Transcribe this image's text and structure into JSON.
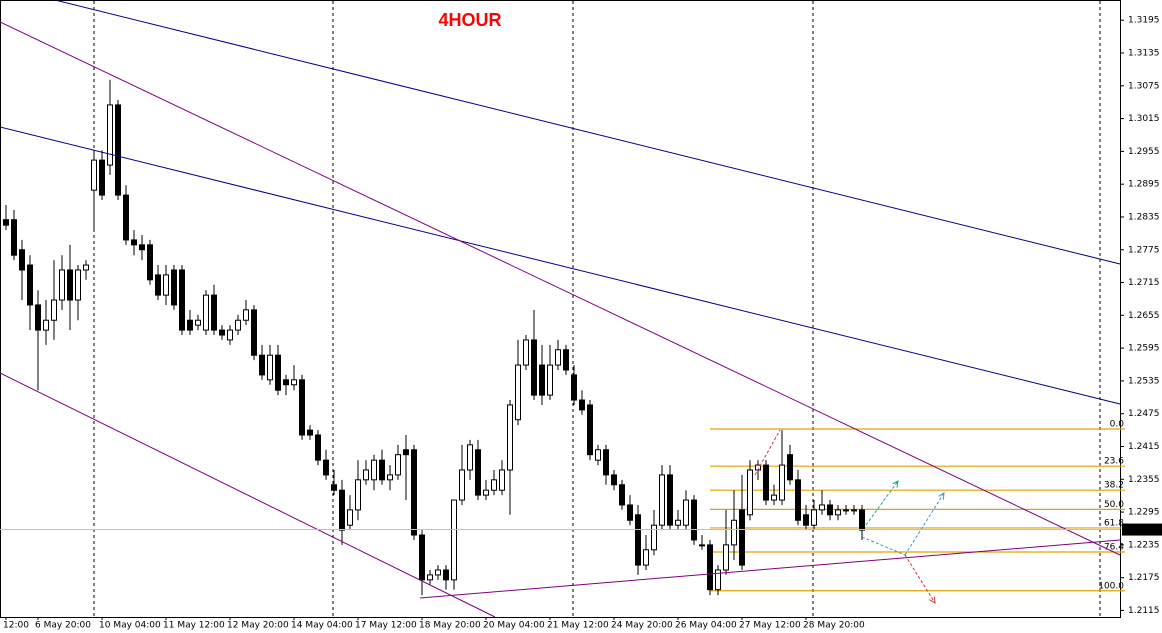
{
  "chart_data": {
    "type": "candlestick",
    "title": "4HOUR",
    "categories": [
      "12:00",
      null,
      null,
      null,
      "6 May 20:00",
      null,
      null,
      null,
      null,
      null,
      null,
      null,
      "10 May 04:00",
      null,
      null,
      null,
      null,
      null,
      null,
      null,
      "11 May 12:00",
      null,
      null,
      null,
      null,
      null,
      null,
      null,
      "12 May 20:00",
      null,
      null,
      null,
      null,
      null,
      null,
      null,
      "14 May 04:00",
      null,
      null,
      null,
      null,
      null,
      null,
      null,
      "17 May 12:00",
      null,
      null,
      null,
      null,
      null,
      null,
      null,
      "18 May 20:00",
      null,
      null,
      null,
      null,
      null,
      null,
      null,
      "20 May 04:00",
      null,
      null,
      null,
      null,
      null,
      null,
      null,
      "21 May 12:00",
      null,
      null,
      null,
      null,
      null,
      null,
      null,
      "24 May 20:00",
      null,
      null,
      null,
      null,
      null,
      null,
      null,
      "26 May 04:00",
      null,
      null,
      null,
      null,
      null,
      null,
      null,
      "27 May 12:00",
      null,
      null,
      null,
      null,
      null,
      null,
      null,
      "28 May 20:00",
      null,
      null,
      null,
      null,
      null,
      null,
      null
    ],
    "open": [
      1.283,
      1.283,
      1.2775,
      1.2747,
      1.2674,
      1.2628,
      1.2646,
      1.2683,
      1.2738,
      1.2683,
      1.2738,
      1.2884,
      1.2939,
      1.293,
      1.304,
      1.2875,
      1.2793,
      1.2784,
      1.2784,
      1.2729,
      1.2692,
      1.2738,
      1.2738,
      1.2646,
      1.2637,
      1.2628,
      1.2692,
      1.2628,
      1.261,
      1.2628,
      1.2646,
      1.2665,
      1.2582,
      1.2537,
      1.2582,
      1.2537,
      1.2528,
      1.2537,
      1.2445,
      1.2436,
      1.239,
      1.2345,
      1.2335,
      1.2271,
      1.2299,
      1.2354,
      1.2354,
      1.239,
      1.2354,
      1.2363,
      1.2409,
      1.2409,
      1.2253,
      1.2171,
      1.218,
      1.2189,
      1.2171,
      1.2317,
      1.2372,
      1.2409,
      1.2326,
      1.2335,
      1.2335,
      1.2372,
      1.2464,
      1.2564,
      1.261,
      1.2564,
      1.2509,
      1.2564,
      1.2592,
      1.2546,
      1.25,
      1.2491,
      1.239,
      1.2409,
      1.2363,
      1.2345,
      1.2308,
      1.229,
      1.2198,
      1.2226,
      1.2271,
      1.2363,
      1.2271,
      1.2271,
      1.2317,
      1.2235,
      1.2235,
      1.2153,
      1.2189,
      1.2235,
      1.2299,
      1.229,
      1.2372,
      1.2381,
      1.2317,
      1.2317,
      1.24,
      1.2354,
      1.229,
      1.2271,
      1.2299,
      1.2308,
      1.229,
      1.2299,
      1.2299,
      1.2299
    ],
    "high": [
      1.2857,
      1.2848,
      1.2793,
      1.2765,
      1.2701,
      1.2683,
      1.2756,
      1.2765,
      1.2784,
      1.2747,
      1.2756,
      1.2957,
      1.2957,
      1.3086,
      1.3049,
      1.2893,
      1.2811,
      1.2802,
      1.2793,
      1.2747,
      1.2747,
      1.2747,
      1.2747,
      1.2665,
      1.2656,
      1.2701,
      1.2711,
      1.2637,
      1.2637,
      1.2656,
      1.2683,
      1.2674,
      1.2601,
      1.2601,
      1.2601,
      1.2546,
      1.2564,
      1.2546,
      1.2454,
      1.2445,
      1.2409,
      1.2372,
      1.2354,
      1.2326,
      1.239,
      1.239,
      1.24,
      1.2409,
      1.2381,
      1.2418,
      1.2436,
      1.2418,
      1.2262,
      1.2189,
      1.2198,
      1.2198,
      1.2317,
      1.2418,
      1.2427,
      1.2427,
      1.2354,
      1.2372,
      1.239,
      1.25,
      1.261,
      1.2619,
      1.2665,
      1.2601,
      1.2601,
      1.261,
      1.2601,
      1.2564,
      1.2518,
      1.25,
      1.2418,
      1.2418,
      1.2372,
      1.2354,
      1.2326,
      1.2308,
      1.2253,
      1.2299,
      1.2381,
      1.2381,
      1.2299,
      1.2335,
      1.2326,
      1.2253,
      1.2244,
      1.2198,
      1.2299,
      1.2335,
      1.2363,
      1.239,
      1.239,
      1.239,
      1.2345,
      1.2445,
      1.2418,
      1.2372,
      1.2308,
      1.2317,
      1.2335,
      1.2317,
      1.2308,
      1.2308,
      1.2308,
      1.2308
    ],
    "low": [
      1.2811,
      1.2756,
      1.2683,
      1.2628,
      1.2518,
      1.2601,
      1.261,
      1.2665,
      1.2628,
      1.2646,
      1.272,
      1.2811,
      1.2866,
      1.2912,
      1.2866,
      1.2784,
      1.2765,
      1.2756,
      1.2711,
      1.2683,
      1.2674,
      1.2665,
      1.2619,
      1.2619,
      1.2628,
      1.2619,
      1.2619,
      1.261,
      1.2601,
      1.2619,
      1.2637,
      1.2573,
      1.2537,
      1.2528,
      1.2509,
      1.2509,
      1.2518,
      1.2427,
      1.2427,
      1.2381,
      1.2354,
      1.2326,
      1.2235,
      1.2262,
      1.228,
      1.2345,
      1.2335,
      1.2345,
      1.2335,
      1.2354,
      1.2317,
      1.2244,
      1.2143,
      1.2162,
      1.2171,
      1.2153,
      1.2153,
      1.2308,
      1.2354,
      1.2317,
      1.2317,
      1.2326,
      1.2326,
      1.229,
      1.2454,
      1.2555,
      1.25,
      1.2491,
      1.25,
      1.2555,
      1.2546,
      1.2491,
      1.2473,
      1.239,
      1.2381,
      1.2345,
      1.2335,
      1.2299,
      1.2271,
      1.218,
      1.2189,
      1.2216,
      1.2262,
      1.2262,
      1.2262,
      1.2262,
      1.2235,
      1.2226,
      1.2143,
      1.2143,
      1.218,
      1.2207,
      1.2189,
      1.228,
      1.2354,
      1.2308,
      1.2308,
      1.2308,
      1.2345,
      1.2271,
      1.2262,
      1.2262,
      1.229,
      1.228,
      1.228,
      1.229,
      1.229,
      1.2244
    ],
    "close": [
      1.282,
      1.2765,
      1.2738,
      1.2674,
      1.2628,
      1.2646,
      1.2683,
      1.2738,
      1.2683,
      1.2738,
      1.2747,
      1.2939,
      1.2875,
      1.304,
      1.2875,
      1.2793,
      1.2784,
      1.2775,
      1.272,
      1.2692,
      1.2729,
      1.2674,
      1.2628,
      1.2628,
      1.2646,
      1.2692,
      1.2628,
      1.2619,
      1.2628,
      1.2646,
      1.2665,
      1.2582,
      1.2546,
      1.2582,
      1.2518,
      1.2528,
      1.2537,
      1.2436,
      1.2436,
      1.239,
      1.2363,
      1.2335,
      1.2262,
      1.2299,
      1.2354,
      1.2372,
      1.239,
      1.2354,
      1.2363,
      1.24,
      1.24,
      1.2253,
      1.2171,
      1.218,
      1.2189,
      1.2171,
      1.2317,
      1.2372,
      1.2418,
      1.2326,
      1.2335,
      1.2354,
      1.2372,
      1.2491,
      1.2564,
      1.261,
      1.2509,
      1.2509,
      1.2564,
      1.2592,
      1.2555,
      1.25,
      1.2482,
      1.24,
      1.2409,
      1.2363,
      1.2345,
      1.2308,
      1.228,
      1.2198,
      1.2226,
      1.2271,
      1.2363,
      1.2271,
      1.228,
      1.2317,
      1.2244,
      1.2235,
      1.2153,
      1.2189,
      1.2235,
      1.228,
      1.2198,
      1.2372,
      1.2381,
      1.2317,
      1.2326,
      1.2381,
      1.2354,
      1.228,
      1.2271,
      1.2299,
      1.2308,
      1.229,
      1.2299,
      1.2299,
      1.2299,
      1.2262
    ],
    "up_color": "#ffffff",
    "down_color": "#000000",
    "ylim": [
      1.2103,
      1.3232
    ],
    "yticks": [
      1.3195,
      1.3135,
      1.3075,
      1.3015,
      1.2955,
      1.2895,
      1.2835,
      1.2775,
      1.2715,
      1.2655,
      1.2595,
      1.2535,
      1.2475,
      1.2415,
      1.2355,
      1.2295,
      1.2235,
      1.2175,
      1.2115
    ],
    "last_price": 1.2263,
    "fibonacci": {
      "color": "#e6a200",
      "levels": [
        "0.0",
        "23.6",
        "38.2",
        "50.0",
        "61.8",
        "76.4",
        "100.0"
      ],
      "prices": [
        1.2447,
        1.2379,
        1.2335,
        1.23,
        1.2266,
        1.2222,
        1.2151
      ]
    }
  }
}
